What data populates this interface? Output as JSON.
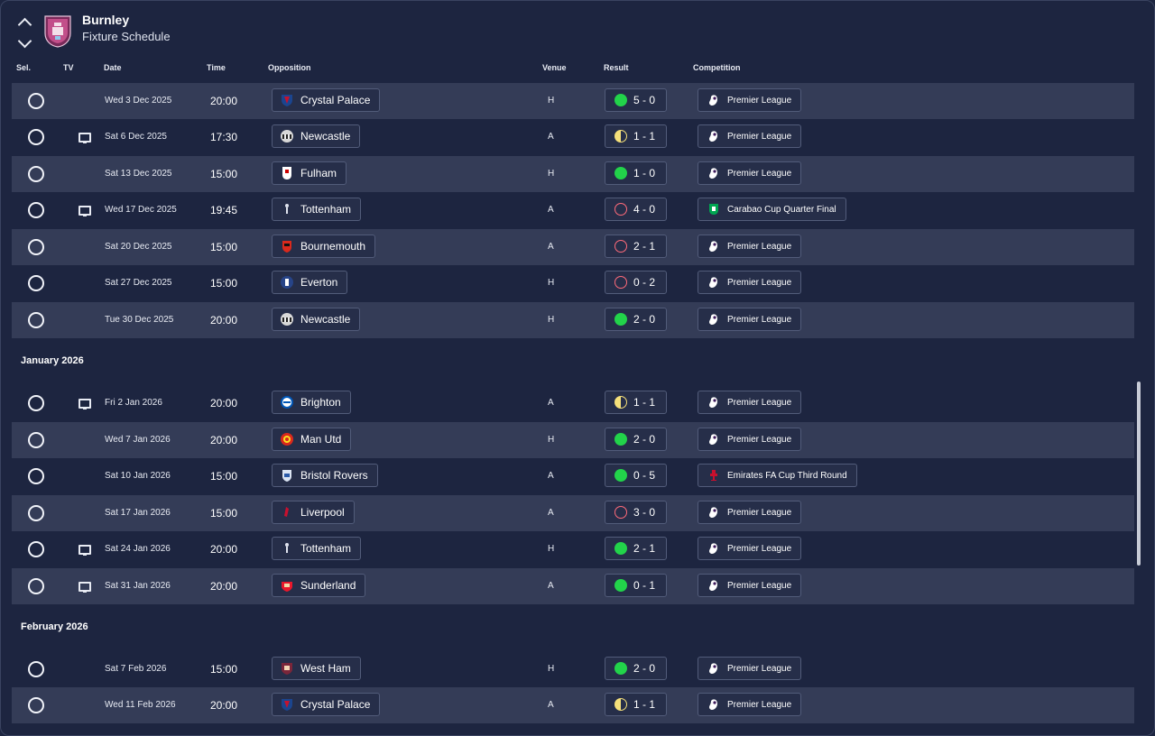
{
  "header": {
    "club": "Burnley",
    "page_title": "Fixture Schedule"
  },
  "columns": {
    "sel": "Sel.",
    "tv": "TV",
    "date": "Date",
    "time": "Time",
    "opposition": "Opposition",
    "venue": "Venue",
    "result": "Result",
    "competition": "Competition"
  },
  "months": [
    "January 2026",
    "February 2026"
  ],
  "fixtures": [
    {
      "tv": false,
      "date": "Wed 3 Dec 2025",
      "time": "20:00",
      "opponent": "Crystal Palace",
      "badge": "crystal-palace-badge-icon",
      "venue": "H",
      "outcome": "win",
      "score": "5 - 0",
      "competition": "Premier League",
      "comp_icon": "premier-league-icon"
    },
    {
      "tv": true,
      "date": "Sat 6 Dec 2025",
      "time": "17:30",
      "opponent": "Newcastle",
      "badge": "newcastle-badge-icon",
      "venue": "A",
      "outcome": "draw",
      "score": "1 - 1",
      "competition": "Premier League",
      "comp_icon": "premier-league-icon"
    },
    {
      "tv": false,
      "date": "Sat 13 Dec 2025",
      "time": "15:00",
      "opponent": "Fulham",
      "badge": "fulham-badge-icon",
      "venue": "H",
      "outcome": "win",
      "score": "1 - 0",
      "competition": "Premier League",
      "comp_icon": "premier-league-icon"
    },
    {
      "tv": true,
      "date": "Wed 17 Dec 2025",
      "time": "19:45",
      "opponent": "Tottenham",
      "badge": "tottenham-badge-icon",
      "venue": "A",
      "outcome": "loss",
      "score": "4 - 0",
      "competition": "Carabao Cup Quarter Final",
      "comp_icon": "carabao-cup-icon"
    },
    {
      "tv": false,
      "date": "Sat 20 Dec 2025",
      "time": "15:00",
      "opponent": "Bournemouth",
      "badge": "bournemouth-badge-icon",
      "venue": "A",
      "outcome": "loss",
      "score": "2 - 1",
      "competition": "Premier League",
      "comp_icon": "premier-league-icon"
    },
    {
      "tv": false,
      "date": "Sat 27 Dec 2025",
      "time": "15:00",
      "opponent": "Everton",
      "badge": "everton-badge-icon",
      "venue": "H",
      "outcome": "loss",
      "score": "0 - 2",
      "competition": "Premier League",
      "comp_icon": "premier-league-icon"
    },
    {
      "tv": false,
      "date": "Tue 30 Dec 2025",
      "time": "20:00",
      "opponent": "Newcastle",
      "badge": "newcastle-badge-icon",
      "venue": "H",
      "outcome": "win",
      "score": "2 - 0",
      "competition": "Premier League",
      "comp_icon": "premier-league-icon"
    },
    {
      "tv": true,
      "date": "Fri 2 Jan 2026",
      "time": "20:00",
      "opponent": "Brighton",
      "badge": "brighton-badge-icon",
      "venue": "A",
      "outcome": "draw",
      "score": "1 - 1",
      "competition": "Premier League",
      "comp_icon": "premier-league-icon"
    },
    {
      "tv": false,
      "date": "Wed 7 Jan 2026",
      "time": "20:00",
      "opponent": "Man Utd",
      "badge": "man-utd-badge-icon",
      "venue": "H",
      "outcome": "win",
      "score": "2 - 0",
      "competition": "Premier League",
      "comp_icon": "premier-league-icon"
    },
    {
      "tv": false,
      "date": "Sat 10 Jan 2026",
      "time": "15:00",
      "opponent": "Bristol Rovers",
      "badge": "bristol-rovers-badge-icon",
      "venue": "A",
      "outcome": "win",
      "score": "0 - 5",
      "competition": "Emirates FA Cup Third Round",
      "comp_icon": "fa-cup-icon"
    },
    {
      "tv": false,
      "date": "Sat 17 Jan 2026",
      "time": "15:00",
      "opponent": "Liverpool",
      "badge": "liverpool-badge-icon",
      "venue": "A",
      "outcome": "loss",
      "score": "3 - 0",
      "competition": "Premier League",
      "comp_icon": "premier-league-icon"
    },
    {
      "tv": true,
      "date": "Sat 24 Jan 2026",
      "time": "20:00",
      "opponent": "Tottenham",
      "badge": "tottenham-badge-icon",
      "venue": "H",
      "outcome": "win",
      "score": "2 - 1",
      "competition": "Premier League",
      "comp_icon": "premier-league-icon"
    },
    {
      "tv": true,
      "date": "Sat 31 Jan 2026",
      "time": "20:00",
      "opponent": "Sunderland",
      "badge": "sunderland-badge-icon",
      "venue": "A",
      "outcome": "win",
      "score": "0 - 1",
      "competition": "Premier League",
      "comp_icon": "premier-league-icon"
    },
    {
      "tv": false,
      "date": "Sat 7 Feb 2026",
      "time": "15:00",
      "opponent": "West Ham",
      "badge": "west-ham-badge-icon",
      "venue": "H",
      "outcome": "win",
      "score": "2 - 0",
      "competition": "Premier League",
      "comp_icon": "premier-league-icon"
    },
    {
      "tv": false,
      "date": "Wed 11 Feb 2026",
      "time": "20:00",
      "opponent": "Crystal Palace",
      "badge": "crystal-palace-badge-icon",
      "venue": "A",
      "outcome": "draw",
      "score": "1 - 1",
      "competition": "Premier League",
      "comp_icon": "premier-league-icon"
    }
  ],
  "colors": {
    "background": "#1d2540",
    "row_alt": "#343c57",
    "win": "#22d34a",
    "loss": "#ff6b7a",
    "draw": "#f5e07a",
    "club_primary": "#7a2a5a",
    "club_secondary": "#8ec9ea"
  }
}
